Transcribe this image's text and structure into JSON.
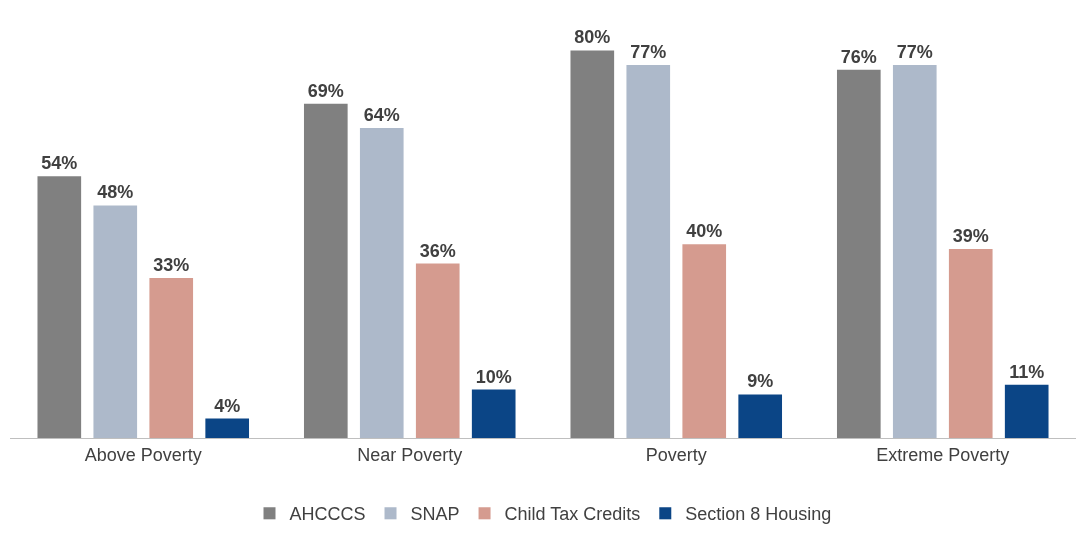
{
  "chart_data": {
    "type": "bar",
    "categories": [
      "Above Poverty",
      "Near Poverty",
      "Poverty",
      "Extreme Poverty"
    ],
    "series": [
      {
        "name": "AHCCCS",
        "color": "#808080",
        "values": [
          54,
          69,
          80,
          76
        ],
        "value_labels": [
          "54%",
          "69%",
          "80%",
          "76%"
        ]
      },
      {
        "name": "SNAP",
        "color": "#adb9ca",
        "values": [
          48,
          64,
          77,
          77
        ],
        "value_labels": [
          "48%",
          "64%",
          "77%",
          "77%"
        ]
      },
      {
        "name": "Child Tax Credits",
        "color": "#d59b8f",
        "values": [
          33,
          36,
          40,
          39
        ],
        "value_labels": [
          "33%",
          "36%",
          "40%",
          "39%"
        ]
      },
      {
        "name": "Section 8 Housing",
        "color": "#0b4586",
        "values": [
          4,
          10,
          9,
          11
        ],
        "value_labels": [
          "4%",
          "10%",
          "9%",
          "11%"
        ]
      }
    ],
    "legend": "bottom"
  }
}
